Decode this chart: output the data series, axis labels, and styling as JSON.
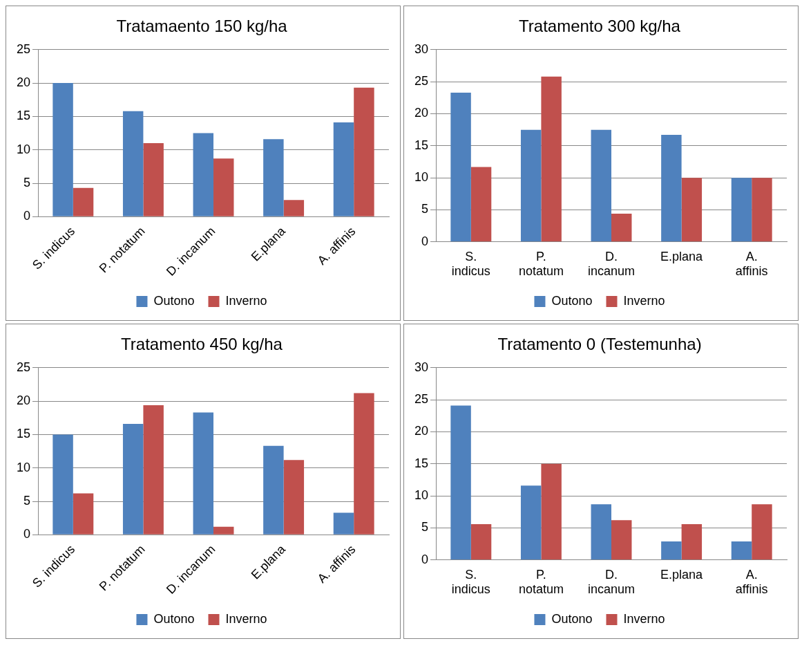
{
  "chart_data": [
    {
      "type": "bar",
      "title": "Tratamaento 150 kg/ha",
      "categories": [
        "S. indicus",
        "P. notatum",
        "D. incanum",
        "E.plana",
        "A. affinis"
      ],
      "series": [
        {
          "name": "Outono",
          "color": "#4f81bd",
          "values": [
            20,
            15.8,
            12.5,
            11.6,
            14.1
          ]
        },
        {
          "name": "Inverno",
          "color": "#c0504d",
          "values": [
            4.3,
            11,
            8.7,
            2.5,
            19.3
          ]
        }
      ],
      "ylim": [
        0,
        25
      ],
      "yticks": [
        0,
        5,
        10,
        15,
        20,
        25
      ],
      "grid": "y",
      "legend": "bottom"
    },
    {
      "type": "bar",
      "title": "Tratamento 300 kg/ha",
      "categories": [
        "S. indicus",
        "P. notatum",
        "D. incanum",
        "E.plana",
        "A. affinis"
      ],
      "series": [
        {
          "name": "Outono",
          "color": "#4f81bd",
          "values": [
            23.3,
            17.5,
            17.5,
            16.7,
            10
          ]
        },
        {
          "name": "Inverno",
          "color": "#c0504d",
          "values": [
            11.7,
            25.8,
            4.4,
            10,
            10
          ]
        }
      ],
      "ylim": [
        0,
        30
      ],
      "yticks": [
        0,
        5,
        10,
        15,
        20,
        25,
        30
      ],
      "grid": "y",
      "legend": "bottom"
    },
    {
      "type": "bar",
      "title": "Tratamento 450 kg/ha",
      "categories": [
        "S. indicus",
        "P. notatum",
        "D. incanum",
        "E.plana",
        "A. affinis"
      ],
      "series": [
        {
          "name": "Outono",
          "color": "#4f81bd",
          "values": [
            15,
            16.6,
            18.3,
            13.3,
            3.3
          ]
        },
        {
          "name": "Inverno",
          "color": "#c0504d",
          "values": [
            6.2,
            19.4,
            1.2,
            11.2,
            21.2
          ]
        }
      ],
      "ylim": [
        0,
        25
      ],
      "yticks": [
        0,
        5,
        10,
        15,
        20,
        25
      ],
      "grid": "y",
      "legend": "bottom"
    },
    {
      "type": "bar",
      "title": "Tratamento 0 (Testemunha)",
      "categories": [
        "S. indicus",
        "P. notatum",
        "D. incanum",
        "E.plana",
        "A. affinis"
      ],
      "series": [
        {
          "name": "Outono",
          "color": "#4f81bd",
          "values": [
            24.1,
            11.6,
            8.7,
            2.9,
            2.9
          ]
        },
        {
          "name": "Inverno",
          "color": "#c0504d",
          "values": [
            5.6,
            15,
            6.2,
            5.6,
            8.7
          ]
        }
      ],
      "ylim": [
        0,
        30
      ],
      "yticks": [
        0,
        5,
        10,
        15,
        20,
        25,
        30
      ],
      "grid": "y",
      "legend": "bottom"
    }
  ]
}
